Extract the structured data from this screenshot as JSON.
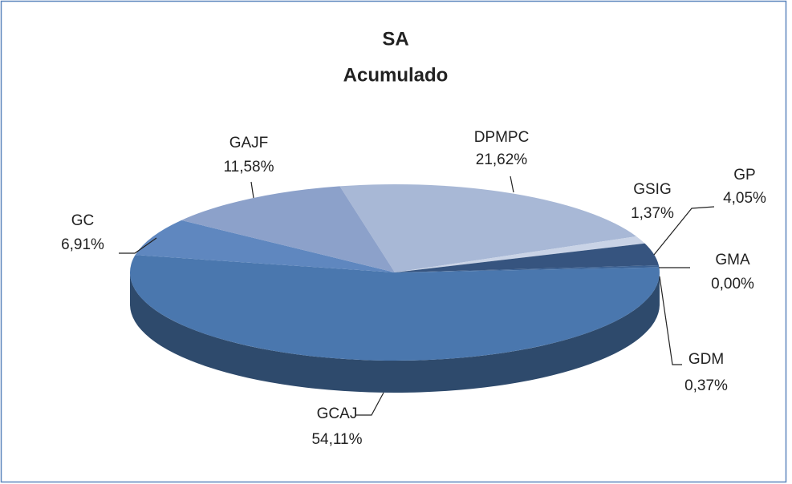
{
  "chart_data": {
    "type": "pie",
    "title": "SA",
    "subtitle": "Acumulado",
    "categories": [
      "DPMPC",
      "GSIG",
      "GP",
      "GMA",
      "GDM",
      "GCAJ",
      "GC",
      "GAJF"
    ],
    "values": [
      21.62,
      1.37,
      4.05,
      0.0,
      0.37,
      54.11,
      6.91,
      11.58
    ],
    "value_labels": [
      "21,62%",
      "1,37%",
      "4,05%",
      "0,00%",
      "0,37%",
      "54,11%",
      "6,91%",
      "11,58%"
    ],
    "colors": [
      "#a8b8d6",
      "#c9d3e6",
      "#36547f",
      "#2d4870",
      "#3b6193",
      "#4a77ae",
      "#5f87bf",
      "#8ca1ca"
    ]
  }
}
